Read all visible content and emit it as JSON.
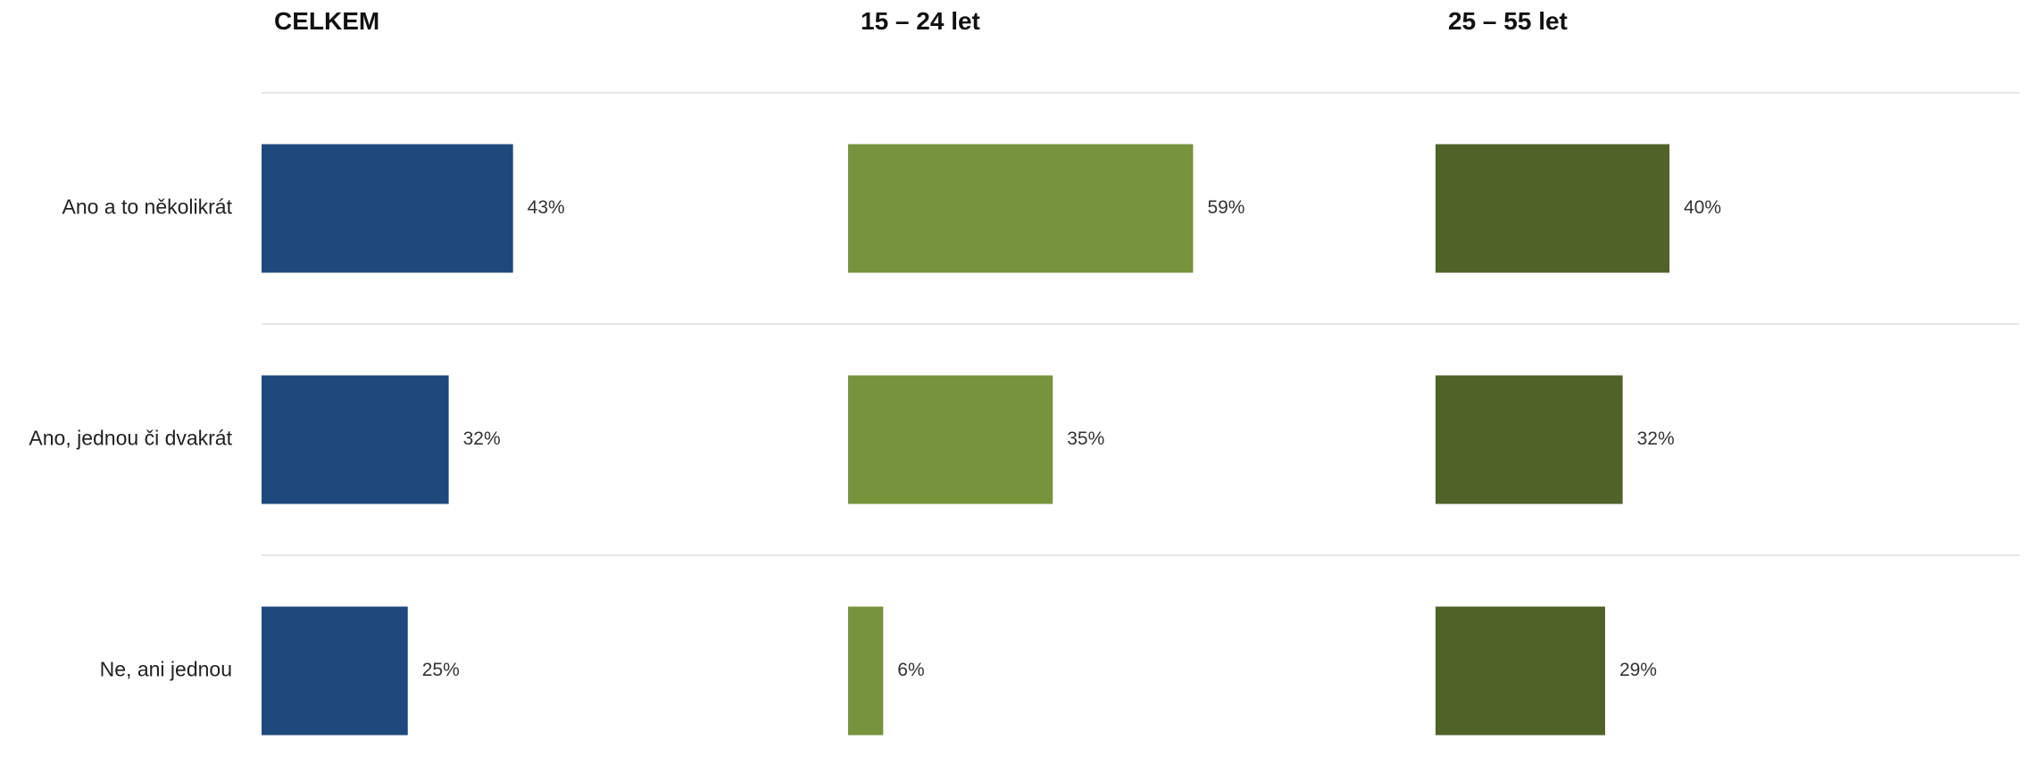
{
  "chart_data": {
    "type": "bar",
    "orientation": "horizontal",
    "categories": [
      "Ano a to několikrát",
      "Ano, jednou či dvakrát",
      "Ne, ani jednou"
    ],
    "series": [
      {
        "name": "CELKEM",
        "values": [
          43,
          32,
          25
        ],
        "color": "#1f497d"
      },
      {
        "name": "15 – 24 let",
        "values": [
          59,
          35,
          6
        ],
        "color": "#77933c"
      },
      {
        "name": "25 – 55 let",
        "values": [
          40,
          32,
          29
        ],
        "color": "#4f6228"
      }
    ],
    "value_suffix": "%",
    "xlim": [
      0,
      100
    ],
    "grid": false,
    "legend": "none"
  }
}
